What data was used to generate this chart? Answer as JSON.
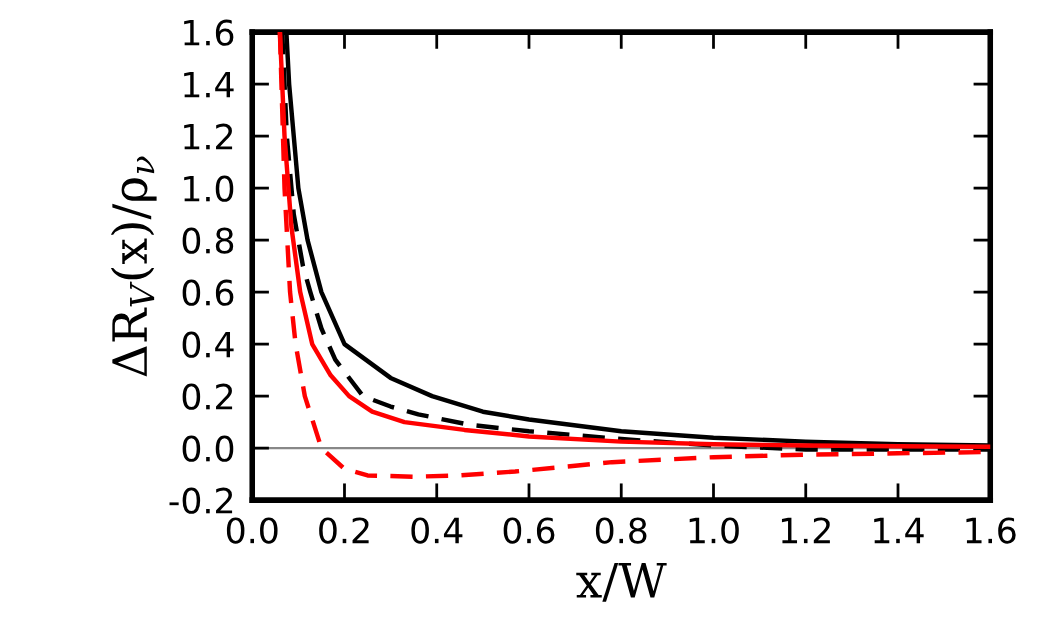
{
  "chart_data": {
    "type": "line",
    "xlabel": "x/W",
    "ylabel": "ΔR$_{V}$(x)/ρ$_{ν}$",
    "xlim": [
      0.0,
      1.6
    ],
    "ylim": [
      -0.2,
      1.6
    ],
    "xticks": [
      {
        "value": 0,
        "label": "0.0"
      },
      0.2,
      0.4,
      0.6,
      0.8,
      {
        "value": 1,
        "label": "1.0"
      },
      1.2,
      1.4,
      1.6
    ],
    "yticks": [
      -0.2,
      {
        "value": 0,
        "label": "0.0"
      },
      0.2,
      0.4,
      0.6,
      0.8,
      {
        "value": 1,
        "label": "1.0"
      },
      1.2,
      1.4,
      1.6
    ],
    "grid": false,
    "legend": false,
    "marker": "none",
    "ref_lines": [
      {
        "axis": "y",
        "value": 0,
        "color": "#888888",
        "line_style": "solid"
      }
    ],
    "series": [
      {
        "color": "#000000",
        "line_style": "solid",
        "x": [
          0.074,
          0.08,
          0.09,
          0.1,
          0.12,
          0.15,
          0.2,
          0.3,
          0.39,
          0.5,
          0.6,
          0.8,
          1.0,
          1.2,
          1.4,
          1.6
        ],
        "values": [
          1.6,
          1.4,
          1.2,
          1.0,
          0.8,
          0.6,
          0.4,
          0.27,
          0.2,
          0.14,
          0.11,
          0.065,
          0.04,
          0.025,
          0.015,
          0.01
        ]
      },
      {
        "color": "#000000",
        "line_style": "dashed",
        "x": [
          0.065,
          0.075,
          0.09,
          0.11,
          0.126,
          0.15,
          0.18,
          0.24,
          0.3,
          0.36,
          0.47,
          0.6,
          0.8,
          1.0,
          1.2,
          1.4,
          1.6
        ],
        "values": [
          1.6,
          1.2,
          0.9,
          0.7,
          0.6,
          0.46,
          0.34,
          0.2,
          0.16,
          0.13,
          0.09,
          0.065,
          0.035,
          0.01,
          -0.005,
          -0.005,
          -0.005
        ]
      },
      {
        "color": "#ff0000",
        "line_style": "solid",
        "x": [
          0.06,
          0.07,
          0.085,
          0.104,
          0.13,
          0.17,
          0.21,
          0.26,
          0.33,
          0.46,
          0.6,
          0.8,
          1.0,
          1.2,
          1.4,
          1.6
        ],
        "values": [
          1.6,
          1.2,
          0.85,
          0.6,
          0.4,
          0.28,
          0.2,
          0.14,
          0.1,
          0.07,
          0.045,
          0.025,
          0.015,
          0.01,
          0.007,
          0.005
        ]
      },
      {
        "color": "#ff0000",
        "line_style": "dashed",
        "x": [
          0.06,
          0.07,
          0.082,
          0.094,
          0.114,
          0.15,
          0.2,
          0.25,
          0.35,
          0.45,
          0.57,
          0.78,
          1.0,
          1.2,
          1.4,
          1.6
        ],
        "values": [
          1.6,
          1.0,
          0.6,
          0.4,
          0.2,
          0.0,
          -0.08,
          -0.105,
          -0.11,
          -0.105,
          -0.09,
          -0.054,
          -0.035,
          -0.025,
          -0.02,
          -0.015
        ]
      }
    ]
  }
}
